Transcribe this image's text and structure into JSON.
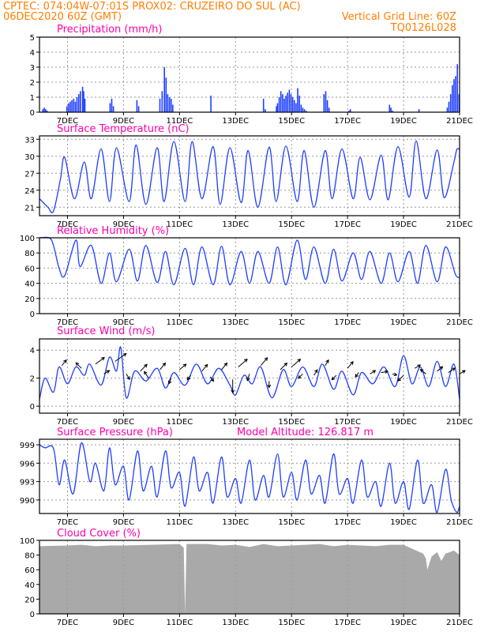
{
  "header": {
    "left_line1": "CPTEC:   074:04W-07:01S   PROX02: CRUZEIRO DO SUL (AC)",
    "left_line2": "06DEC2020 60Z (GMT)",
    "right_line2": "Vertical Grid Line: 60Z",
    "right_line3": "TQ0126L028"
  },
  "colors": {
    "header": "#ff7f00",
    "title": "#ff00aa",
    "series": "#1f3fff",
    "cloud": "#a9a9a9",
    "grid": "#999999"
  },
  "time_axis": {
    "labels": [
      "7DEC",
      "9DEC",
      "11DEC",
      "13DEC",
      "15DEC",
      "17DEC",
      "19DEC",
      "21DEC"
    ]
  },
  "chart_data": [
    {
      "type": "bar",
      "title": "Precipitation (mm/h)",
      "ylim": [
        0,
        5
      ],
      "yticks": [
        "0",
        "1",
        "2",
        "3",
        "4",
        "5"
      ],
      "x_range_days": [
        6.0,
        21.0
      ],
      "bar_width_days": 0.045,
      "x": [
        6.12,
        6.17,
        6.22,
        6.27,
        6.98,
        7.04,
        7.1,
        7.16,
        7.22,
        7.28,
        7.34,
        7.4,
        7.46,
        7.54,
        7.58,
        7.62,
        8.52,
        8.58,
        8.64,
        9.48,
        9.54,
        10.3,
        10.38,
        10.46,
        10.52,
        10.58,
        10.64,
        10.7,
        10.76,
        12.12,
        14.0,
        14.06,
        14.46,
        14.5,
        14.56,
        14.62,
        14.68,
        14.74,
        14.8,
        14.86,
        14.92,
        14.98,
        15.04,
        15.1,
        15.16,
        15.22,
        15.28,
        15.34,
        15.4,
        15.46,
        15.52,
        16.16,
        16.22,
        16.28,
        16.34,
        17.05,
        17.1,
        18.5,
        18.55,
        18.6,
        19.55,
        20.56,
        20.62,
        20.68,
        20.74,
        20.8,
        20.86,
        20.92,
        20.98
      ],
      "values": [
        0.2,
        0.3,
        0.2,
        0.1,
        0.4,
        0.6,
        0.7,
        0.8,
        0.9,
        0.7,
        1.0,
        1.2,
        1.4,
        1.7,
        1.4,
        0.9,
        0.6,
        0.9,
        0.4,
        0.8,
        0.4,
        0.9,
        1.4,
        3.0,
        2.3,
        1.2,
        1.0,
        0.9,
        0.5,
        1.1,
        0.9,
        0.2,
        0.4,
        0.6,
        1.0,
        1.4,
        1.2,
        0.9,
        1.1,
        1.3,
        1.5,
        1.2,
        1.0,
        0.8,
        0.6,
        1.6,
        1.1,
        0.5,
        0.3,
        0.2,
        0.1,
        1.2,
        1.4,
        0.8,
        0.3,
        0.1,
        0.2,
        0.5,
        0.3,
        0.1,
        0.2,
        0.3,
        0.7,
        1.2,
        1.8,
        2.2,
        2.4,
        3.2,
        1.2
      ]
    },
    {
      "type": "line",
      "title": "Surface Temperature (nC)",
      "ylim": [
        19.5,
        33.6
      ],
      "yticks": [
        "21",
        "24",
        "27",
        "30",
        "33"
      ],
      "series": [
        {
          "x": [
            6.0,
            6.3,
            6.5,
            6.75,
            6.9,
            7.25,
            7.6,
            7.85,
            8.2,
            8.5,
            8.75,
            9.2,
            9.45,
            9.8,
            10.2,
            10.45,
            10.8,
            11.2,
            11.45,
            11.8,
            12.2,
            12.45,
            12.8,
            13.2,
            13.45,
            13.8,
            14.2,
            14.45,
            14.8,
            15.2,
            15.45,
            15.8,
            16.2,
            16.45,
            16.8,
            17.2,
            17.45,
            17.8,
            18.2,
            18.45,
            18.8,
            19.2,
            19.45,
            19.8,
            20.2,
            20.45,
            20.8,
            20.9,
            21.0
          ],
          "y": [
            22.5,
            21.0,
            20.3,
            26.0,
            29.8,
            22.5,
            29.0,
            22.5,
            31.3,
            22.0,
            31.5,
            22.0,
            32.0,
            21.5,
            31.5,
            22.0,
            32.6,
            22.0,
            32.6,
            22.5,
            31.7,
            21.5,
            31.5,
            21.8,
            31.0,
            21.0,
            31.6,
            22.0,
            31.8,
            22.0,
            31.0,
            21.0,
            31.0,
            22.5,
            31.3,
            22.5,
            29.8,
            22.3,
            30.2,
            22.3,
            31.7,
            22.8,
            32.7,
            22.5,
            31.1,
            22.7,
            29.0,
            31.2,
            31.2
          ]
        }
      ]
    },
    {
      "type": "line",
      "title": "Relative Humidity (%)",
      "ylim": [
        0,
        100
      ],
      "yticks": [
        "0",
        "20",
        "40",
        "60",
        "80",
        "100"
      ],
      "series": [
        {
          "x": [
            6.0,
            6.35,
            6.5,
            6.7,
            6.9,
            7.3,
            7.45,
            7.85,
            8.2,
            8.5,
            8.75,
            9.2,
            9.5,
            9.8,
            10.2,
            10.5,
            10.8,
            11.2,
            11.5,
            11.8,
            12.2,
            12.5,
            12.8,
            13.2,
            13.5,
            13.8,
            14.2,
            14.5,
            14.8,
            15.2,
            15.5,
            15.8,
            16.2,
            16.5,
            16.8,
            17.2,
            17.5,
            17.8,
            18.2,
            18.5,
            18.8,
            19.2,
            19.5,
            19.8,
            20.2,
            20.5,
            20.85,
            21.0
          ],
          "y": [
            100,
            100,
            90,
            60,
            50,
            97,
            62,
            90,
            40,
            80,
            42,
            85,
            43,
            90,
            41,
            82,
            38,
            86,
            38,
            88,
            38,
            89,
            38,
            82,
            40,
            82,
            40,
            88,
            38,
            97,
            45,
            88,
            40,
            85,
            43,
            80,
            45,
            82,
            40,
            80,
            42,
            82,
            40,
            90,
            42,
            88,
            52,
            48
          ]
        }
      ]
    },
    {
      "type": "line",
      "title": "Surface Wind (m/s)",
      "ylim": [
        -0.5,
        4.8
      ],
      "yticks": [
        "0",
        "2",
        "4"
      ],
      "series": [
        {
          "x": [
            6.0,
            6.2,
            6.5,
            6.7,
            7.0,
            7.3,
            7.6,
            7.8,
            8.2,
            8.5,
            8.75,
            8.9,
            9.1,
            9.4,
            9.8,
            10.2,
            10.5,
            10.8,
            11.2,
            11.6,
            12.0,
            12.4,
            12.8,
            13.0,
            13.3,
            13.6,
            13.9,
            14.3,
            14.7,
            15.0,
            15.4,
            15.8,
            16.1,
            16.5,
            16.8,
            17.2,
            17.5,
            17.9,
            18.3,
            18.7,
            19.0,
            19.3,
            19.6,
            19.9,
            20.2,
            20.5,
            20.8,
            21.0
          ],
          "y": [
            0.5,
            2.0,
            1.0,
            2.8,
            1.6,
            2.8,
            2.2,
            3.0,
            1.5,
            3.5,
            2.5,
            4.2,
            0.6,
            2.5,
            1.8,
            2.7,
            1.3,
            2.4,
            1.5,
            3.0,
            1.6,
            2.7,
            1.5,
            0.8,
            2.2,
            1.6,
            2.8,
            0.6,
            2.6,
            1.4,
            2.8,
            1.4,
            3.0,
            1.2,
            2.5,
            0.8,
            2.4,
            1.6,
            2.8,
            1.4,
            3.6,
            1.6,
            2.8,
            1.4,
            3.2,
            1.4,
            3.0,
            0.5
          ]
        }
      ],
      "wind_vectors": {
        "x": [
          6.8,
          7.5,
          8.0,
          8.3,
          8.7,
          9.1,
          9.6,
          9.9,
          10.3,
          10.7,
          11.0,
          11.4,
          11.8,
          12.1,
          12.5,
          12.9,
          13.1,
          13.5,
          13.9,
          14.2,
          14.6,
          15.0,
          15.4,
          15.8,
          16.2,
          16.6,
          17.0,
          17.4,
          17.8,
          18.2,
          18.6,
          19.0,
          19.4,
          19.8,
          20.2,
          20.6,
          21.0
        ],
        "y": [
          2.9,
          2.7,
          3.0,
          2.3,
          3.2,
          2.3,
          2.5,
          2.0,
          2.6,
          2.0,
          2.6,
          2.2,
          2.5,
          2.1,
          2.6,
          1.9,
          2.8,
          2.3,
          2.9,
          1.8,
          2.6,
          2.8,
          2.3,
          2.2,
          2.9,
          2.2,
          2.7,
          2.4,
          2.3,
          2.4,
          2.3,
          2.2,
          2.7,
          2.3,
          2.5,
          2.4,
          2.3
        ],
        "u": [
          0.4,
          -0.5,
          0.8,
          0.5,
          1.0,
          0.3,
          0.6,
          -0.4,
          0.5,
          -0.2,
          0.6,
          -0.3,
          0.5,
          0.3,
          0.5,
          0.0,
          0.8,
          -0.2,
          0.6,
          0.0,
          0.6,
          0.8,
          -0.4,
          0.3,
          0.3,
          -0.4,
          0.5,
          -0.3,
          0.5,
          0.6,
          0.4,
          -0.5,
          0.5,
          -0.5,
          0.5,
          0.6,
          0.5
        ],
        "v": [
          0.5,
          0.5,
          0.6,
          0.3,
          0.7,
          -0.5,
          0.6,
          0.6,
          0.6,
          -0.5,
          0.5,
          -0.4,
          0.6,
          -0.4,
          0.6,
          -1.2,
          0.7,
          -0.6,
          0.7,
          -0.6,
          0.6,
          0.7,
          -0.4,
          0.5,
          0.5,
          -0.4,
          0.6,
          -0.4,
          0.3,
          0.1,
          -0.1,
          -0.5,
          0.3,
          0.4,
          0.4,
          0.4,
          0.3
        ]
      }
    },
    {
      "type": "line",
      "title": "Surface Pressure (hPa)",
      "annotation": "Model Altitude: 126.817  m",
      "ylim": [
        987.8,
        999.9
      ],
      "yticks": [
        "990",
        "993",
        "996",
        "999"
      ],
      "series": [
        {
          "x": [
            6.0,
            6.2,
            6.5,
            6.7,
            6.9,
            7.2,
            7.5,
            7.8,
            8.0,
            8.3,
            8.5,
            8.7,
            9.0,
            9.2,
            9.5,
            9.7,
            10.0,
            10.2,
            10.5,
            10.7,
            11.0,
            11.2,
            11.5,
            11.7,
            12.0,
            12.2,
            12.5,
            12.7,
            13.0,
            13.2,
            13.5,
            13.7,
            14.0,
            14.2,
            14.5,
            14.7,
            15.0,
            15.2,
            15.5,
            15.7,
            16.0,
            16.2,
            16.5,
            16.7,
            17.0,
            17.2,
            17.5,
            17.7,
            18.0,
            18.2,
            18.5,
            18.7,
            19.0,
            19.2,
            19.5,
            19.7,
            20.0,
            20.2,
            20.5,
            20.7,
            20.9,
            21.0
          ],
          "y": [
            999.0,
            998.5,
            998.4,
            992.5,
            996.5,
            991.0,
            999.3,
            993.0,
            996.0,
            991.5,
            998.5,
            992.5,
            995.5,
            990.0,
            998.0,
            991.5,
            995.5,
            990.5,
            998.0,
            992.0,
            994.5,
            989.0,
            997.0,
            991.5,
            994.5,
            989.5,
            997.0,
            990.5,
            993.5,
            989.5,
            996.5,
            990.0,
            994.0,
            990.5,
            997.5,
            990.5,
            994.5,
            990.0,
            996.5,
            991.0,
            994.0,
            989.5,
            997.5,
            991.0,
            993.5,
            989.5,
            996.5,
            990.5,
            993.0,
            989.0,
            996.0,
            989.5,
            993.0,
            988.5,
            996.5,
            989.5,
            992.5,
            988.0,
            995.0,
            990.0,
            988.0,
            989.0
          ]
        }
      ]
    },
    {
      "type": "area",
      "title": "Cloud Cover (%)",
      "ylim": [
        0,
        100
      ],
      "yticks": [
        "0",
        "20",
        "40",
        "60",
        "80",
        "100"
      ],
      "series": [
        {
          "x": [
            6.0,
            7.0,
            7.5,
            8.0,
            8.5,
            9.0,
            10.0,
            11.0,
            11.15,
            11.2,
            11.25,
            12.0,
            12.5,
            13.0,
            13.5,
            14.0,
            14.5,
            15.0,
            15.5,
            16.0,
            16.5,
            17.0,
            17.5,
            18.0,
            18.5,
            19.0,
            19.4,
            19.7,
            19.8,
            19.85,
            20.0,
            20.2,
            20.35,
            20.5,
            20.8,
            21.0
          ],
          "y": [
            92,
            93,
            94,
            92,
            93,
            93,
            94,
            95,
            90,
            0,
            95,
            95,
            93,
            94,
            91,
            95,
            92,
            93,
            94,
            95,
            92,
            94,
            93,
            92,
            94,
            94,
            87,
            82,
            75,
            60,
            78,
            84,
            72,
            82,
            86,
            80
          ]
        }
      ]
    }
  ]
}
